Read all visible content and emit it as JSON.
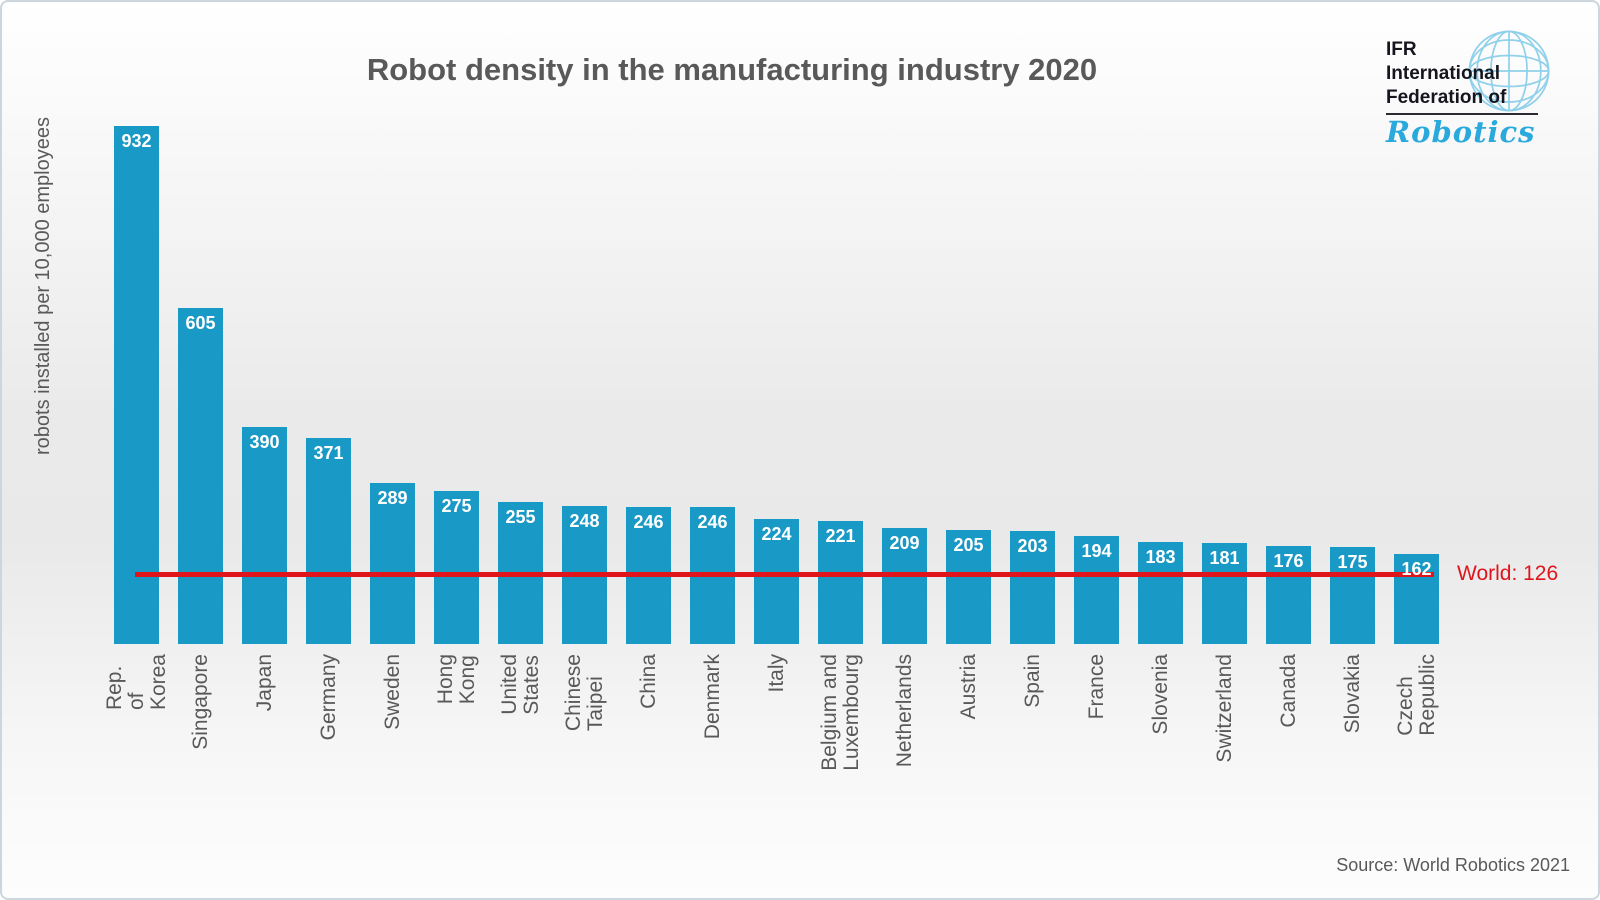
{
  "title": "Robot density in the manufacturing industry 2020",
  "y_axis_label": "robots installed per 10,000 employees",
  "source": "Source: World Robotics 2021",
  "logo": {
    "line1": "IFR",
    "line2": "International",
    "line3": "Federation of",
    "script": "Robotics",
    "globe_color": "#8fd0ea",
    "script_color": "#2aa9dd"
  },
  "world_line": {
    "label": "World: 126",
    "value": 126,
    "color": "#e0151c"
  },
  "chart_data": {
    "type": "bar",
    "title": "Robot density in the manufacturing industry 2020",
    "xlabel": "",
    "ylabel": "robots installed per 10,000 employees",
    "ylim": [
      0,
      960
    ],
    "grid": false,
    "bar_color": "#1899c6",
    "value_label_color": "#ffffff",
    "categories": [
      "Rep. of Korea",
      "Singapore",
      "Japan",
      "Germany",
      "Sweden",
      "Hong Kong",
      "United States",
      "Chinese Taipei",
      "China",
      "Denmark",
      "Italy",
      "Belgium and Luxembourg",
      "Netherlands",
      "Austria",
      "Spain",
      "France",
      "Slovenia",
      "Switzerland",
      "Canada",
      "Slovakia",
      "Czech Republic"
    ],
    "values": [
      932,
      605,
      390,
      371,
      289,
      275,
      255,
      248,
      246,
      246,
      224,
      221,
      209,
      205,
      203,
      194,
      183,
      181,
      176,
      175,
      162
    ],
    "reference_line": {
      "label": "World: 126",
      "value": 126
    }
  }
}
